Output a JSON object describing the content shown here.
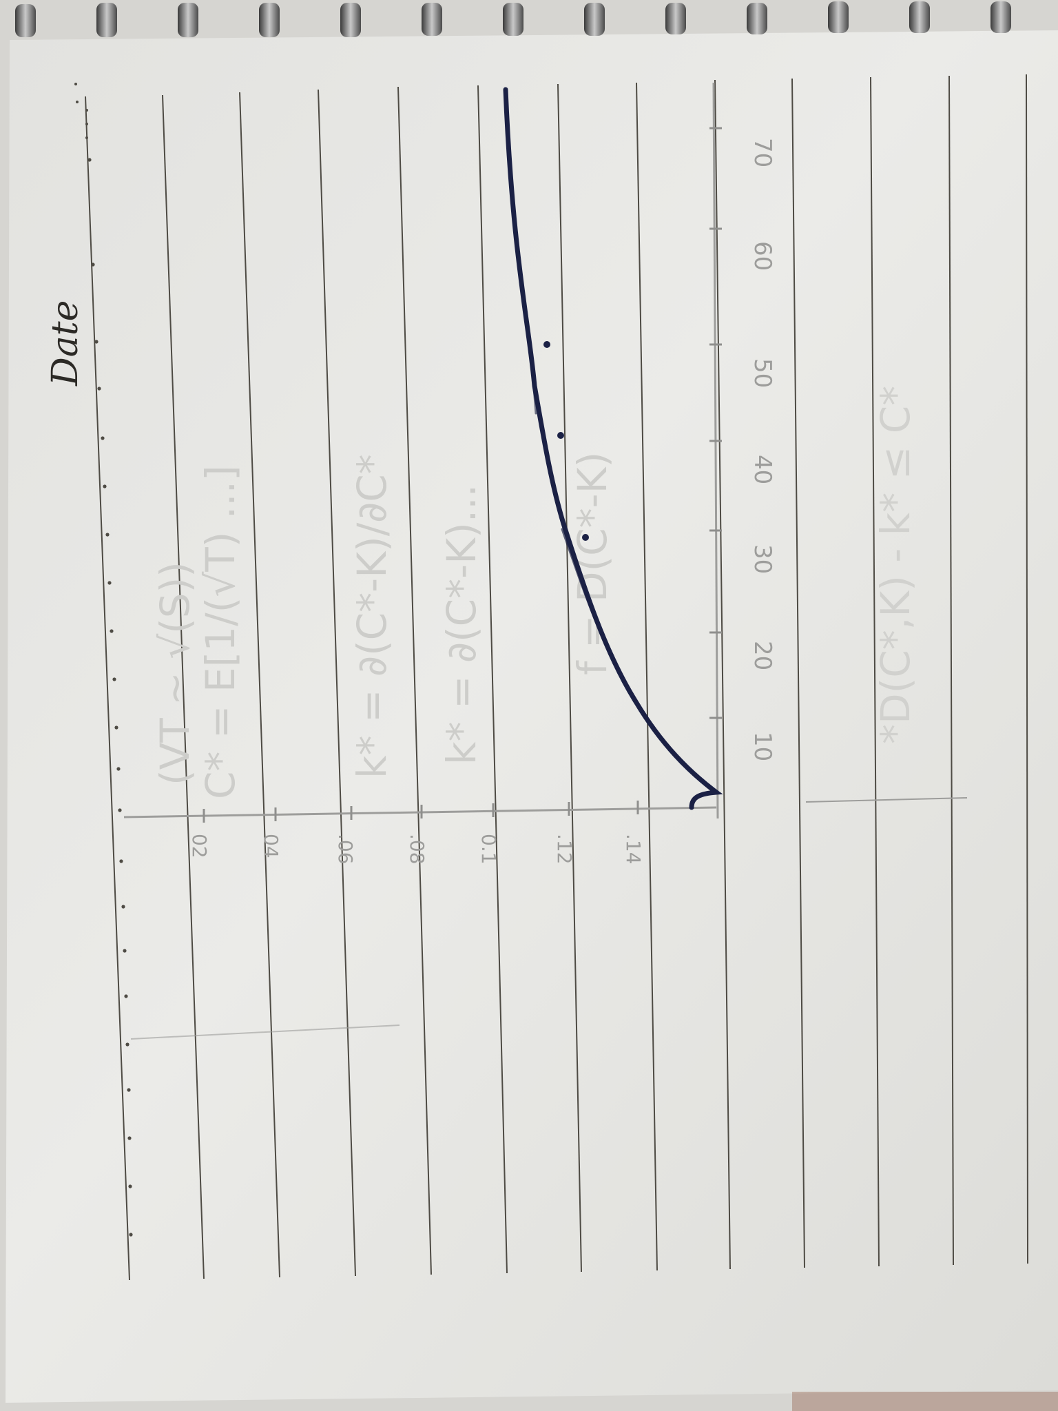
{
  "page_header": {
    "date_label": "Date"
  },
  "pencil_graph": {
    "x_tick_labels": [
      "10",
      "20",
      "30",
      "40",
      "50",
      "60",
      "70"
    ],
    "y_tick_labels": [
      "02",
      "04",
      ".06",
      ".08",
      "0.1",
      ".12",
      ".14"
    ]
  },
  "faint_text": {
    "pencil_notes": [
      "(VT ~ √(S))",
      "C* = E[1/(√T) ...]",
      "k* = ∂(C*-K)/∂C*",
      "k* = ∂(C*-K)...",
      "f = D(C*-K)"
    ],
    "bleed_through": "*D(C*,K) - k* ≤ C*"
  },
  "colors": {
    "paper": "#e9e9e6",
    "rule_line": "#4e4b44",
    "ink": "#1b2145",
    "pencil": "#9d9d9b",
    "binding_ring": "#6a6a6a",
    "backing_board": "#d6d5d1"
  }
}
